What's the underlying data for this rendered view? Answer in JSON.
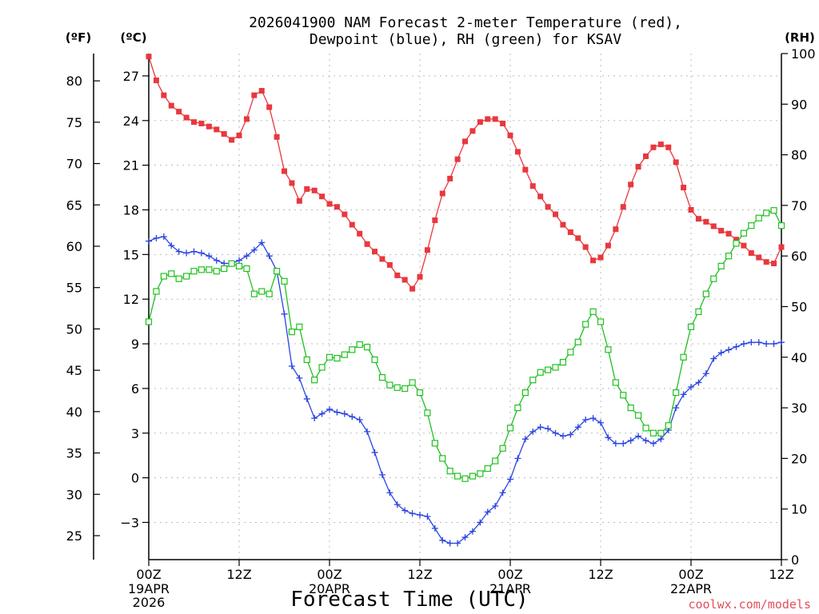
{
  "chart_data": {
    "type": "line",
    "title_line1": "2026041900 NAM Forecast 2-meter Temperature (red),",
    "title_line2": "Dewpoint (blue), RH (green) for KSAV",
    "xlabel": "Forecast Time (UTC)",
    "credit": "coolwx.com/models",
    "unit_f": "(ºF)",
    "unit_c": "(ºC)",
    "unit_rh": "(RH)",
    "x_range_hours": [
      0,
      84
    ],
    "x_ticks": [
      {
        "h": 0,
        "label": "00Z",
        "sub1": "19APR",
        "sub2": "2026"
      },
      {
        "h": 12,
        "label": "12Z",
        "sub1": "",
        "sub2": ""
      },
      {
        "h": 24,
        "label": "00Z",
        "sub1": "20APR",
        "sub2": ""
      },
      {
        "h": 36,
        "label": "12Z",
        "sub1": "",
        "sub2": ""
      },
      {
        "h": 48,
        "label": "00Z",
        "sub1": "21APR",
        "sub2": ""
      },
      {
        "h": 60,
        "label": "12Z",
        "sub1": "",
        "sub2": ""
      },
      {
        "h": 72,
        "label": "00Z",
        "sub1": "22APR",
        "sub2": ""
      },
      {
        "h": 84,
        "label": "12Z",
        "sub1": "",
        "sub2": ""
      }
    ],
    "celsius_range": [
      -5.5,
      28.5
    ],
    "celsius_ticks": [
      {
        "v": -3,
        "label": "−3"
      },
      {
        "v": 0,
        "label": "0"
      },
      {
        "v": 3,
        "label": "3"
      },
      {
        "v": 6,
        "label": "6"
      },
      {
        "v": 9,
        "label": "9"
      },
      {
        "v": 12,
        "label": "12"
      },
      {
        "v": 15,
        "label": "15"
      },
      {
        "v": 18,
        "label": "18"
      },
      {
        "v": 21,
        "label": "21"
      },
      {
        "v": 24,
        "label": "24"
      },
      {
        "v": 27,
        "label": "27"
      }
    ],
    "fahrenheit_ticks": [
      {
        "v": 25,
        "label": "25"
      },
      {
        "v": 30,
        "label": "30"
      },
      {
        "v": 35,
        "label": "35"
      },
      {
        "v": 40,
        "label": "40"
      },
      {
        "v": 45,
        "label": "45"
      },
      {
        "v": 50,
        "label": "50"
      },
      {
        "v": 55,
        "label": "55"
      },
      {
        "v": 60,
        "label": "60"
      },
      {
        "v": 65,
        "label": "65"
      },
      {
        "v": 70,
        "label": "70"
      },
      {
        "v": 75,
        "label": "75"
      },
      {
        "v": 80,
        "label": "80"
      }
    ],
    "rh_range": [
      0,
      100
    ],
    "rh_ticks": [
      {
        "v": 0,
        "label": "0"
      },
      {
        "v": 10,
        "label": "10"
      },
      {
        "v": 20,
        "label": "20"
      },
      {
        "v": 30,
        "label": "30"
      },
      {
        "v": 40,
        "label": "40"
      },
      {
        "v": 50,
        "label": "50"
      },
      {
        "v": 60,
        "label": "60"
      },
      {
        "v": 70,
        "label": "70"
      },
      {
        "v": 80,
        "label": "80"
      },
      {
        "v": 90,
        "label": "90"
      },
      {
        "v": 100,
        "label": "100"
      }
    ],
    "series": [
      {
        "name": "Temperature (C)",
        "color": "#e8383e",
        "marker": "filled-square",
        "axis": "celsius",
        "values": [
          [
            0,
            28.3
          ],
          [
            1,
            26.7
          ],
          [
            2,
            25.7
          ],
          [
            3,
            25.0
          ],
          [
            4,
            24.6
          ],
          [
            5,
            24.2
          ],
          [
            6,
            23.9
          ],
          [
            7,
            23.8
          ],
          [
            8,
            23.6
          ],
          [
            9,
            23.4
          ],
          [
            10,
            23.1
          ],
          [
            11,
            22.7
          ],
          [
            12,
            23.0
          ],
          [
            13,
            24.1
          ],
          [
            14,
            25.7
          ],
          [
            15,
            26.0
          ],
          [
            16,
            24.9
          ],
          [
            17,
            22.9
          ],
          [
            18,
            20.6
          ],
          [
            19,
            19.8
          ],
          [
            20,
            18.6
          ],
          [
            21,
            19.4
          ],
          [
            22,
            19.3
          ],
          [
            23,
            18.9
          ],
          [
            24,
            18.4
          ],
          [
            25,
            18.2
          ],
          [
            26,
            17.7
          ],
          [
            27,
            17.0
          ],
          [
            28,
            16.4
          ],
          [
            29,
            15.7
          ],
          [
            30,
            15.2
          ],
          [
            31,
            14.7
          ],
          [
            32,
            14.3
          ],
          [
            33,
            13.6
          ],
          [
            34,
            13.3
          ],
          [
            35,
            12.7
          ],
          [
            36,
            13.5
          ],
          [
            37,
            15.3
          ],
          [
            38,
            17.3
          ],
          [
            39,
            19.1
          ],
          [
            40,
            20.1
          ],
          [
            41,
            21.4
          ],
          [
            42,
            22.6
          ],
          [
            43,
            23.3
          ],
          [
            44,
            23.9
          ],
          [
            45,
            24.1
          ],
          [
            46,
            24.1
          ],
          [
            47,
            23.8
          ],
          [
            48,
            23.0
          ],
          [
            49,
            21.9
          ],
          [
            50,
            20.7
          ],
          [
            51,
            19.6
          ],
          [
            52,
            18.9
          ],
          [
            53,
            18.2
          ],
          [
            54,
            17.7
          ],
          [
            55,
            17.0
          ],
          [
            56,
            16.5
          ],
          [
            57,
            16.1
          ],
          [
            58,
            15.5
          ],
          [
            59,
            14.6
          ],
          [
            60,
            14.8
          ],
          [
            61,
            15.6
          ],
          [
            62,
            16.7
          ],
          [
            63,
            18.2
          ],
          [
            64,
            19.7
          ],
          [
            65,
            20.9
          ],
          [
            66,
            21.6
          ],
          [
            67,
            22.2
          ],
          [
            68,
            22.4
          ],
          [
            69,
            22.2
          ],
          [
            70,
            21.2
          ],
          [
            71,
            19.5
          ],
          [
            72,
            18.0
          ],
          [
            73,
            17.4
          ],
          [
            74,
            17.2
          ],
          [
            75,
            16.9
          ],
          [
            76,
            16.6
          ],
          [
            77,
            16.4
          ],
          [
            78,
            16.0
          ],
          [
            79,
            15.6
          ],
          [
            80,
            15.1
          ],
          [
            81,
            14.8
          ],
          [
            82,
            14.5
          ],
          [
            83,
            14.4
          ],
          [
            84,
            15.5
          ]
        ]
      },
      {
        "name": "Dewpoint (C)",
        "color": "#2a44e0",
        "marker": "plus",
        "axis": "celsius",
        "values": [
          [
            0,
            15.9
          ],
          [
            1,
            16.1
          ],
          [
            2,
            16.2
          ],
          [
            3,
            15.6
          ],
          [
            4,
            15.2
          ],
          [
            5,
            15.1
          ],
          [
            6,
            15.2
          ],
          [
            7,
            15.1
          ],
          [
            8,
            14.9
          ],
          [
            9,
            14.6
          ],
          [
            10,
            14.4
          ],
          [
            11,
            14.4
          ],
          [
            12,
            14.6
          ],
          [
            13,
            14.9
          ],
          [
            14,
            15.3
          ],
          [
            15,
            15.8
          ],
          [
            16,
            14.9
          ],
          [
            17,
            13.9
          ],
          [
            18,
            11.0
          ],
          [
            19,
            7.5
          ],
          [
            20,
            6.7
          ],
          [
            21,
            5.3
          ],
          [
            22,
            4.0
          ],
          [
            23,
            4.3
          ],
          [
            24,
            4.6
          ],
          [
            25,
            4.4
          ],
          [
            26,
            4.3
          ],
          [
            27,
            4.1
          ],
          [
            28,
            3.9
          ],
          [
            29,
            3.1
          ],
          [
            30,
            1.7
          ],
          [
            31,
            0.2
          ],
          [
            32,
            -1.0
          ],
          [
            33,
            -1.8
          ],
          [
            34,
            -2.2
          ],
          [
            35,
            -2.4
          ],
          [
            36,
            -2.5
          ],
          [
            37,
            -2.6
          ],
          [
            38,
            -3.4
          ],
          [
            39,
            -4.2
          ],
          [
            40,
            -4.4
          ],
          [
            41,
            -4.4
          ],
          [
            42,
            -4.0
          ],
          [
            43,
            -3.6
          ],
          [
            44,
            -3.0
          ],
          [
            45,
            -2.3
          ],
          [
            46,
            -1.9
          ],
          [
            47,
            -1.0
          ],
          [
            48,
            -0.1
          ],
          [
            49,
            1.3
          ],
          [
            50,
            2.6
          ],
          [
            51,
            3.1
          ],
          [
            52,
            3.4
          ],
          [
            53,
            3.3
          ],
          [
            54,
            3.0
          ],
          [
            55,
            2.8
          ],
          [
            56,
            2.9
          ],
          [
            57,
            3.4
          ],
          [
            58,
            3.9
          ],
          [
            59,
            4.0
          ],
          [
            60,
            3.7
          ],
          [
            61,
            2.7
          ],
          [
            62,
            2.3
          ],
          [
            63,
            2.3
          ],
          [
            64,
            2.5
          ],
          [
            65,
            2.8
          ],
          [
            66,
            2.5
          ],
          [
            67,
            2.3
          ],
          [
            68,
            2.6
          ],
          [
            69,
            3.2
          ],
          [
            70,
            4.7
          ],
          [
            71,
            5.6
          ],
          [
            72,
            6.1
          ],
          [
            73,
            6.4
          ],
          [
            74,
            7.0
          ],
          [
            75,
            8.0
          ],
          [
            76,
            8.4
          ],
          [
            77,
            8.6
          ],
          [
            78,
            8.8
          ],
          [
            79,
            9.0
          ],
          [
            80,
            9.1
          ],
          [
            81,
            9.1
          ],
          [
            82,
            9.0
          ],
          [
            83,
            9.0
          ],
          [
            84,
            9.1
          ]
        ]
      },
      {
        "name": "RH (%)",
        "color": "#20c020",
        "marker": "open-square",
        "axis": "rh",
        "values": [
          [
            0,
            47
          ],
          [
            1,
            53
          ],
          [
            2,
            56
          ],
          [
            3,
            56.5
          ],
          [
            4,
            55.5
          ],
          [
            5,
            56
          ],
          [
            6,
            57
          ],
          [
            7,
            57.3
          ],
          [
            8,
            57.3
          ],
          [
            9,
            57
          ],
          [
            10,
            57.5
          ],
          [
            11,
            58.5
          ],
          [
            12,
            58
          ],
          [
            13,
            57.5
          ],
          [
            14,
            52.5
          ],
          [
            15,
            53
          ],
          [
            16,
            52.5
          ],
          [
            17,
            57
          ],
          [
            18,
            55
          ],
          [
            19,
            45
          ],
          [
            20,
            46
          ],
          [
            21,
            39.5
          ],
          [
            22,
            35.5
          ],
          [
            23,
            38
          ],
          [
            24,
            40
          ],
          [
            25,
            39.8
          ],
          [
            26,
            40.5
          ],
          [
            27,
            41.5
          ],
          [
            28,
            42.5
          ],
          [
            29,
            42
          ],
          [
            30,
            39.5
          ],
          [
            31,
            36
          ],
          [
            32,
            34.5
          ],
          [
            33,
            34
          ],
          [
            34,
            33.8
          ],
          [
            35,
            35
          ],
          [
            36,
            33
          ],
          [
            37,
            29
          ],
          [
            38,
            23
          ],
          [
            39,
            20
          ],
          [
            40,
            17.5
          ],
          [
            41,
            16.5
          ],
          [
            42,
            16
          ],
          [
            43,
            16.5
          ],
          [
            44,
            17
          ],
          [
            45,
            18
          ],
          [
            46,
            19.5
          ],
          [
            47,
            22
          ],
          [
            48,
            26
          ],
          [
            49,
            30
          ],
          [
            50,
            33
          ],
          [
            51,
            35.5
          ],
          [
            52,
            37
          ],
          [
            53,
            37.5
          ],
          [
            54,
            38
          ],
          [
            55,
            39
          ],
          [
            56,
            41
          ],
          [
            57,
            43
          ],
          [
            58,
            46.5
          ],
          [
            59,
            49
          ],
          [
            60,
            47
          ],
          [
            61,
            41.5
          ],
          [
            62,
            35
          ],
          [
            63,
            32.5
          ],
          [
            64,
            30
          ],
          [
            65,
            28.5
          ],
          [
            66,
            26
          ],
          [
            67,
            25
          ],
          [
            68,
            25
          ],
          [
            69,
            26.5
          ],
          [
            70,
            33
          ],
          [
            71,
            40
          ],
          [
            72,
            46
          ],
          [
            73,
            49
          ],
          [
            74,
            52.5
          ],
          [
            75,
            55.5
          ],
          [
            76,
            58
          ],
          [
            77,
            60
          ],
          [
            78,
            62.5
          ],
          [
            79,
            64.5
          ],
          [
            80,
            66
          ],
          [
            81,
            67.5
          ],
          [
            82,
            68.5
          ],
          [
            83,
            69
          ],
          [
            84,
            66
          ]
        ]
      }
    ]
  }
}
